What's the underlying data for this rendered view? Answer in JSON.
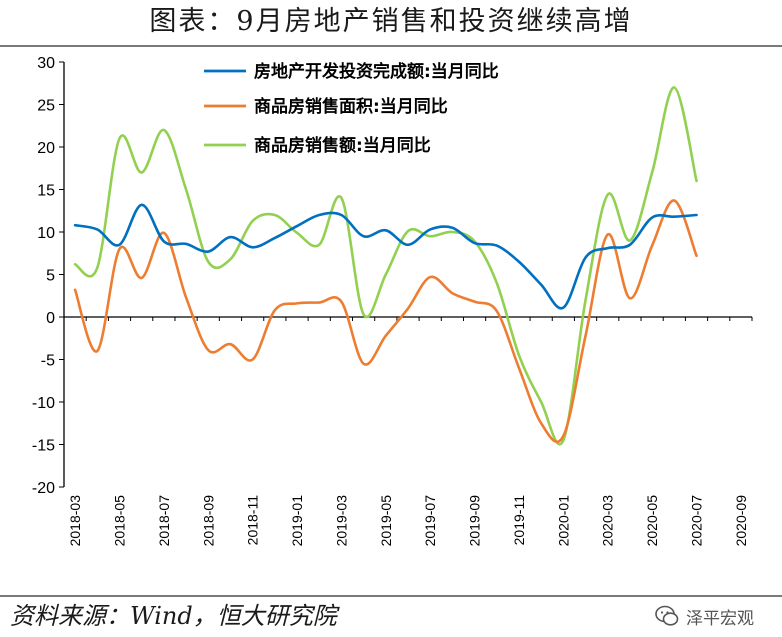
{
  "title": "图表：9月房地产销售和投资继续高增",
  "source": "资料来源：Wind，恒大研究院",
  "watermark": {
    "text": "泽平宏观",
    "icon": "wechat-icon"
  },
  "chart_data": {
    "type": "line",
    "title": "",
    "xlabel": "",
    "ylabel": "",
    "ylim": [
      -20,
      30
    ],
    "yticks": [
      30,
      25,
      20,
      15,
      10,
      5,
      0,
      -5,
      -10,
      -15,
      -20
    ],
    "grid": false,
    "legend_position": "top-center",
    "x": [
      "2018-03",
      "2018-04",
      "2018-05",
      "2018-06",
      "2018-07",
      "2018-08",
      "2018-09",
      "2018-10",
      "2018-11",
      "2018-12",
      "2019-01",
      "2019-02",
      "2019-03",
      "2019-04",
      "2019-05",
      "2019-06",
      "2019-07",
      "2019-08",
      "2019-09",
      "2019-10",
      "2019-11",
      "2019-12",
      "2020-01",
      "2020-02",
      "2020-03",
      "2020-04",
      "2020-05",
      "2020-06",
      "2020-07",
      "2020-08",
      "2020-09"
    ],
    "xtick_labels": [
      "2018-03",
      "2018-05",
      "2018-07",
      "2018-09",
      "2018-11",
      "2019-01",
      "2019-03",
      "2019-05",
      "2019-07",
      "2019-09",
      "2019-11",
      "2020-01",
      "2020-03",
      "2020-05",
      "2020-07",
      "2020-09"
    ],
    "series": [
      {
        "name": "房地产开发投资完成额:当月同比",
        "color": "#0070c0",
        "values": [
          10.8,
          10.3,
          8.5,
          13.2,
          8.9,
          8.6,
          7.7,
          9.4,
          8.2,
          9.3,
          10.7,
          12.0,
          12.0,
          9.5,
          10.2,
          8.5,
          10.3,
          10.5,
          8.7,
          8.4,
          6.5,
          3.8,
          1.1,
          7.0,
          8.1,
          8.5,
          11.7,
          11.8,
          12.0,
          null,
          null
        ]
      },
      {
        "name": "商品房销售面积:当月同比",
        "color": "#ed7d31",
        "values": [
          3.2,
          -4.0,
          8.0,
          4.6,
          9.9,
          2.3,
          -3.9,
          -3.2,
          -5.0,
          0.8,
          1.6,
          1.7,
          1.8,
          -5.5,
          -2.2,
          1.0,
          4.7,
          2.8,
          1.8,
          0.7,
          -6.0,
          -12.5,
          -14.0,
          -2.2,
          9.7,
          2.2,
          8.4,
          13.7,
          7.2,
          null,
          null
        ]
      },
      {
        "name": "商品房销售额:当月同比",
        "color": "#92d050",
        "values": [
          6.2,
          5.8,
          21.0,
          17.0,
          22.0,
          15.0,
          6.5,
          6.8,
          11.3,
          12.0,
          9.9,
          8.5,
          14.0,
          0.3,
          5.0,
          10.1,
          9.5,
          10.0,
          8.9,
          4.0,
          -4.5,
          -10.0,
          -14.5,
          2.0,
          14.4,
          9.0,
          17.0,
          27.0,
          16.0,
          null,
          null
        ]
      }
    ]
  }
}
